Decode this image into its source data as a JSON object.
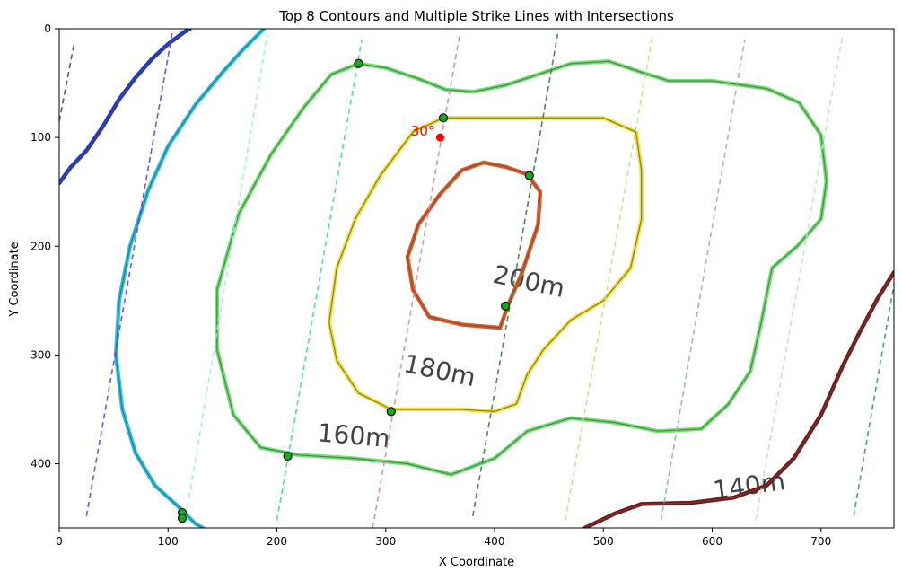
{
  "chart_data": {
    "type": "line",
    "title": "Top 8 Contours and Multiple Strike Lines with Intersections",
    "xlabel": "X Coordinate",
    "ylabel": "Y Coordinate",
    "xlim": [
      0,
      767
    ],
    "ylim": [
      459,
      0
    ],
    "y_inverted": true,
    "xticks": [
      0,
      100,
      200,
      300,
      400,
      500,
      600,
      700
    ],
    "yticks": [
      0,
      100,
      200,
      300,
      400
    ],
    "grid": false,
    "background_map_labels": [
      {
        "text": "200m",
        "x": 430,
        "y": 240,
        "rotation": 12
      },
      {
        "text": "180m",
        "x": 348,
        "y": 322,
        "rotation": 12
      },
      {
        "text": "160m",
        "x": 270,
        "y": 382,
        "rotation": 5
      },
      {
        "text": "140m",
        "x": 635,
        "y": 428,
        "rotation": -8
      }
    ],
    "contours": [
      {
        "color": "#1a33cc",
        "points": [
          [
            0,
            142
          ],
          [
            10,
            128
          ],
          [
            25,
            112
          ],
          [
            40,
            90
          ],
          [
            55,
            65
          ],
          [
            70,
            45
          ],
          [
            85,
            28
          ],
          [
            100,
            14
          ],
          [
            115,
            3
          ],
          [
            120,
            0
          ]
        ]
      },
      {
        "color": "#22c4e6",
        "points": [
          [
            188,
            0
          ],
          [
            170,
            18
          ],
          [
            150,
            40
          ],
          [
            125,
            70
          ],
          [
            100,
            108
          ],
          [
            82,
            148
          ],
          [
            65,
            200
          ],
          [
            55,
            250
          ],
          [
            52,
            300
          ],
          [
            58,
            350
          ],
          [
            70,
            390
          ],
          [
            88,
            420
          ],
          [
            110,
            440
          ],
          [
            125,
            455
          ],
          [
            132,
            459
          ]
        ]
      },
      {
        "color": "#6ee36e",
        "points": [
          [
            275,
            32
          ],
          [
            300,
            36
          ],
          [
            330,
            46
          ],
          [
            355,
            56
          ],
          [
            380,
            58
          ],
          [
            410,
            52
          ],
          [
            440,
            42
          ],
          [
            470,
            32
          ],
          [
            505,
            30
          ],
          [
            535,
            40
          ],
          [
            560,
            48
          ],
          [
            600,
            48
          ],
          [
            650,
            55
          ],
          [
            680,
            68
          ],
          [
            700,
            98
          ],
          [
            705,
            140
          ],
          [
            700,
            175
          ],
          [
            678,
            200
          ],
          [
            655,
            220
          ],
          [
            645,
            270
          ],
          [
            635,
            315
          ],
          [
            615,
            345
          ],
          [
            590,
            368
          ],
          [
            550,
            370
          ],
          [
            510,
            362
          ],
          [
            470,
            358
          ],
          [
            430,
            370
          ],
          [
            400,
            395
          ],
          [
            360,
            410
          ],
          [
            320,
            400
          ],
          [
            270,
            395
          ],
          [
            220,
            392
          ],
          [
            185,
            385
          ],
          [
            160,
            355
          ],
          [
            145,
            295
          ],
          [
            145,
            240
          ],
          [
            165,
            170
          ],
          [
            195,
            115
          ],
          [
            225,
            72
          ],
          [
            250,
            42
          ],
          [
            275,
            32
          ]
        ]
      },
      {
        "color": "#f5e133",
        "points": [
          [
            353,
            82
          ],
          [
            420,
            82
          ],
          [
            500,
            82
          ],
          [
            530,
            95
          ],
          [
            535,
            130
          ],
          [
            535,
            175
          ],
          [
            525,
            220
          ],
          [
            500,
            250
          ],
          [
            470,
            268
          ],
          [
            445,
            295
          ],
          [
            430,
            318
          ],
          [
            420,
            345
          ],
          [
            400,
            352
          ],
          [
            370,
            350
          ],
          [
            340,
            350
          ],
          [
            305,
            350
          ],
          [
            275,
            335
          ],
          [
            255,
            305
          ],
          [
            248,
            270
          ],
          [
            255,
            220
          ],
          [
            272,
            175
          ],
          [
            295,
            135
          ],
          [
            325,
            95
          ],
          [
            353,
            82
          ]
        ]
      },
      {
        "color": "#e25a22",
        "points": [
          [
            390,
            123
          ],
          [
            410,
            127
          ],
          [
            430,
            134
          ],
          [
            442,
            150
          ],
          [
            440,
            180
          ],
          [
            425,
            225
          ],
          [
            412,
            255
          ],
          [
            405,
            275
          ],
          [
            370,
            272
          ],
          [
            340,
            265
          ],
          [
            325,
            240
          ],
          [
            320,
            210
          ],
          [
            330,
            180
          ],
          [
            350,
            152
          ],
          [
            370,
            130
          ],
          [
            390,
            123
          ]
        ]
      },
      {
        "color": "#7a1010",
        "points": [
          [
            483,
            459
          ],
          [
            510,
            446
          ],
          [
            535,
            437
          ],
          [
            580,
            436
          ],
          [
            620,
            431
          ],
          [
            650,
            420
          ],
          [
            675,
            395
          ],
          [
            700,
            355
          ],
          [
            720,
            310
          ],
          [
            735,
            280
          ],
          [
            752,
            248
          ],
          [
            767,
            224
          ]
        ]
      }
    ],
    "strike_lines": [
      {
        "color": "#2f4f6f",
        "x": [
          0,
          14
        ],
        "y": [
          85,
          12
        ]
      },
      {
        "color": "#6a3fd6",
        "x": [
          25,
          104
        ],
        "y": [
          448,
          3
        ]
      },
      {
        "color": "#9ef0dc",
        "x": [
          115,
          191
        ],
        "y": [
          456,
          6
        ]
      },
      {
        "color": "#3ee07a",
        "x": [
          200,
          278
        ],
        "y": [
          452,
          10
        ]
      },
      {
        "color": "#d98a94",
        "x": [
          288,
          368
        ],
        "y": [
          459,
          5
        ]
      },
      {
        "color": "#3d7a3d",
        "x": [
          380,
          458
        ],
        "y": [
          448,
          5
        ]
      },
      {
        "color": "#d6d68a",
        "x": [
          465,
          545
        ],
        "y": [
          452,
          8
        ]
      },
      {
        "color": "#8ab8a8",
        "x": [
          553,
          630
        ],
        "y": [
          452,
          10
        ]
      },
      {
        "color": "#b8e6c0",
        "x": [
          640,
          720
        ],
        "y": [
          452,
          5
        ]
      },
      {
        "color": "#3f9a4a",
        "x": [
          730,
          767
        ],
        "y": [
          448,
          235
        ]
      }
    ],
    "intersections": [
      [
        275,
        32
      ],
      [
        353,
        82
      ],
      [
        432,
        135
      ],
      [
        410,
        255
      ],
      [
        305,
        352
      ],
      [
        210,
        393
      ],
      [
        113,
        445
      ],
      [
        113,
        450
      ]
    ],
    "reference_point": {
      "x": 350,
      "y": 100,
      "label": "30°",
      "color": "#ff0000"
    }
  }
}
